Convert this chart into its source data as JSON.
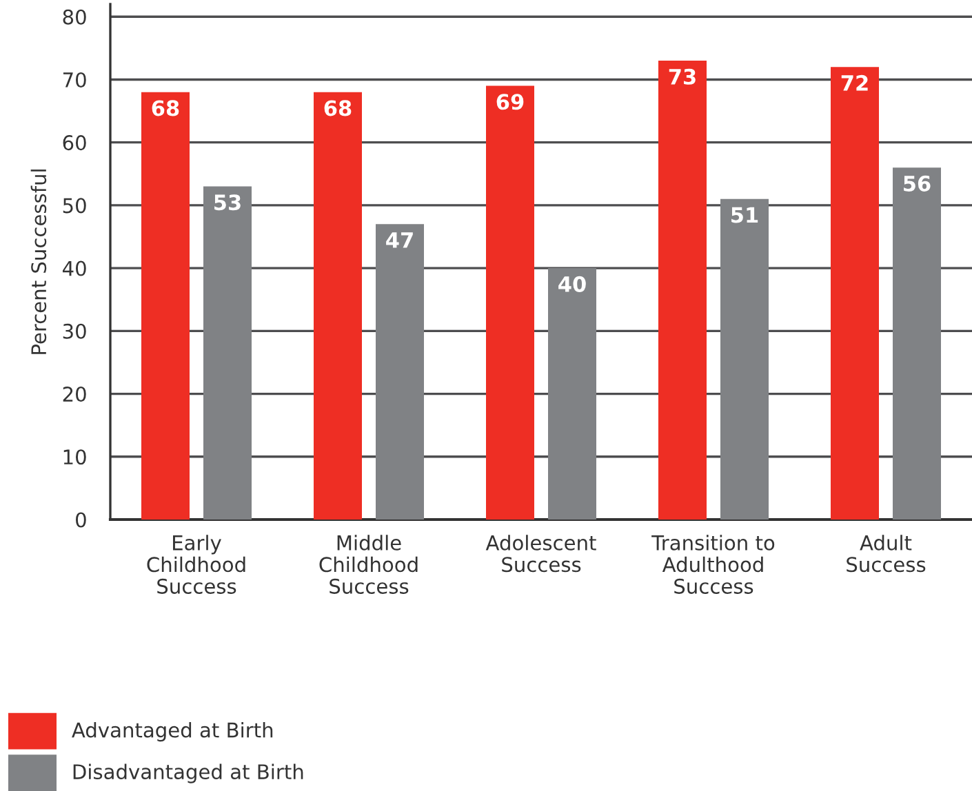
{
  "chart_data": {
    "type": "bar",
    "ylabel": "Percent Successful",
    "categories": [
      "Early\nChildhood\nSuccess",
      "Middle\nChildhood\nSuccess",
      "Adolescent\nSuccess",
      "Transition to\nAdulthood\nSuccess",
      "Adult\nSuccess"
    ],
    "series": [
      {
        "name": "Advantaged at Birth",
        "color": "#ee2e24",
        "values": [
          68,
          68,
          69,
          73,
          72
        ]
      },
      {
        "name": "Disadvantaged at Birth",
        "color": "#808285",
        "values": [
          53,
          47,
          40,
          51,
          56
        ]
      }
    ],
    "ylim": [
      0,
      82
    ],
    "yticks": [
      0,
      10,
      20,
      30,
      40,
      50,
      60,
      70,
      80
    ],
    "grid": "y",
    "legend": "bottom left",
    "data_labels": true
  }
}
